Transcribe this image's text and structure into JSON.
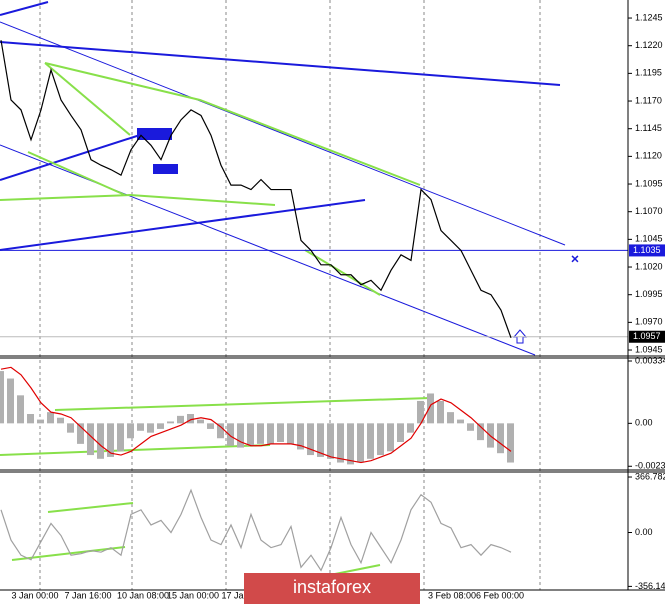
{
  "chart_data": [
    {
      "type": "line",
      "color": "#000000",
      "values": [
        1.1225,
        1.1171,
        1.1162,
        1.1135,
        1.1162,
        1.1198,
        1.1171,
        1.1157,
        1.1144,
        1.1117,
        1.1112,
        1.1108,
        1.1103,
        1.1126,
        1.1139,
        1.113,
        1.1117,
        1.1139,
        1.1153,
        1.1162,
        1.1157,
        1.1139,
        1.1112,
        1.1094,
        1.1094,
        1.109,
        1.1099,
        1.109,
        1.109,
        1.109,
        1.1044,
        1.1035,
        1.1022,
        1.1022,
        1.1013,
        1.1013,
        1.1004,
        1.1008,
        1.0999,
        1.1017,
        1.1031,
        1.1026,
        1.109,
        1.1081,
        1.1053,
        1.1044,
        1.1035,
        1.1017,
        1.0999,
        1.0995,
        1.0981,
        1.0956
      ],
      "ylim": [
        1.09396,
        1.12613
      ],
      "yticks": [
        {
          "value": 1.1245,
          "label": "1.1245"
        },
        {
          "value": 1.122,
          "label": "1.1220"
        },
        {
          "value": 1.1195,
          "label": "1.1195"
        },
        {
          "value": 1.117,
          "label": "1.1170"
        },
        {
          "value": 1.1145,
          "label": "1.1145"
        },
        {
          "value": 1.112,
          "label": "1.1120"
        },
        {
          "value": 1.1095,
          "label": "1.1095"
        },
        {
          "value": 1.107,
          "label": "1.1070"
        },
        {
          "value": 1.1045,
          "label": "1.1045"
        },
        {
          "value": 1.102,
          "label": "1.1020"
        },
        {
          "value": 1.0995,
          "label": "1.0995"
        },
        {
          "value": 1.097,
          "label": "1.0970"
        },
        {
          "value": 1.0945,
          "label": "1.0945"
        }
      ],
      "price_labels": [
        {
          "value": 1.1035,
          "label": "1.1035"
        },
        {
          "value": 1.0957,
          "label": "1.0957"
        }
      ],
      "x_labels": [
        "3 Jan 00:00",
        "7 Jan 16:00",
        "10 Jan 08:00",
        "15 Jan 00:00",
        "17 Jan",
        "3 Feb 08:00",
        "6 Feb 00:00"
      ]
    },
    {
      "type": "bar",
      "color": "#b0b0b0",
      "values": [
        0.0028,
        0.0024,
        0.0015,
        0.0005,
        0.0002,
        0.0006,
        0.0003,
        -0.0005,
        -0.0011,
        -0.0017,
        -0.0019,
        -0.0018,
        -0.0015,
        -0.0008,
        -0.0004,
        -0.0005,
        -0.0003,
        0.0001,
        0.0004,
        0.0005,
        0.0002,
        -0.0003,
        -0.0008,
        -0.0012,
        -0.0013,
        -0.0012,
        -0.0011,
        -0.0011,
        -0.001,
        -0.0011,
        -0.0014,
        -0.0017,
        -0.0018,
        -0.0019,
        -0.0021,
        -0.0022,
        -0.0021,
        -0.0019,
        -0.0017,
        -0.0015,
        -0.001,
        -0.0005,
        0.0012,
        0.0016,
        0.0012,
        0.0006,
        0.0002,
        -0.0004,
        -0.0009,
        -0.0013,
        -0.0016,
        -0.0021
      ],
      "signal": {
        "color": "#e00000",
        "values": [
          0.0029,
          0.003,
          0.0026,
          0.0019,
          0.0011,
          0.0006,
          0.0005,
          0.0003,
          -0.0002,
          -0.0007,
          -0.0012,
          -0.0016,
          -0.0017,
          -0.0015,
          -0.0011,
          -0.0007,
          -0.0005,
          -0.0003,
          -0.0001,
          0.0002,
          0.0003,
          0.0002,
          -0.0002,
          -0.0007,
          -0.001,
          -0.0012,
          -0.0012,
          -0.0011,
          -0.0011,
          -0.0011,
          -0.0012,
          -0.0014,
          -0.0016,
          -0.0018,
          -0.0019,
          -0.002,
          -0.0021,
          -0.002,
          -0.0018,
          -0.0016,
          -0.0012,
          -0.0008,
          0.0,
          0.001,
          0.0013,
          0.0011,
          0.0007,
          0.0003,
          -0.0002,
          -0.0007,
          -0.0011,
          -0.0015
        ]
      },
      "ylim": [
        -0.0025,
        0.0035
      ],
      "yticks": [
        0.00334,
        {
          "value": 0,
          "label": "0.00"
        },
        -0.0023
      ]
    },
    {
      "type": "line",
      "color": "#a0a0a0",
      "values": [
        150,
        -50,
        -150,
        -180,
        -60,
        60,
        -20,
        -150,
        -140,
        -120,
        -130,
        -100,
        -150,
        120,
        150,
        50,
        80,
        0,
        120,
        280,
        100,
        -50,
        -80,
        50,
        -100,
        120,
        -50,
        -100,
        -80,
        40,
        -230,
        -150,
        -250,
        -100,
        100,
        -80,
        -200,
        0,
        -100,
        -200,
        -50,
        150,
        250,
        200,
        60,
        30,
        -100,
        -80,
        -150,
        -80,
        -100,
        -130
      ],
      "ylim": [
        -380,
        400
      ],
      "yticks": [
        366.782,
        {
          "value": 0,
          "label": "0.00"
        },
        -356.145
      ]
    }
  ],
  "watermark": "instaforex"
}
